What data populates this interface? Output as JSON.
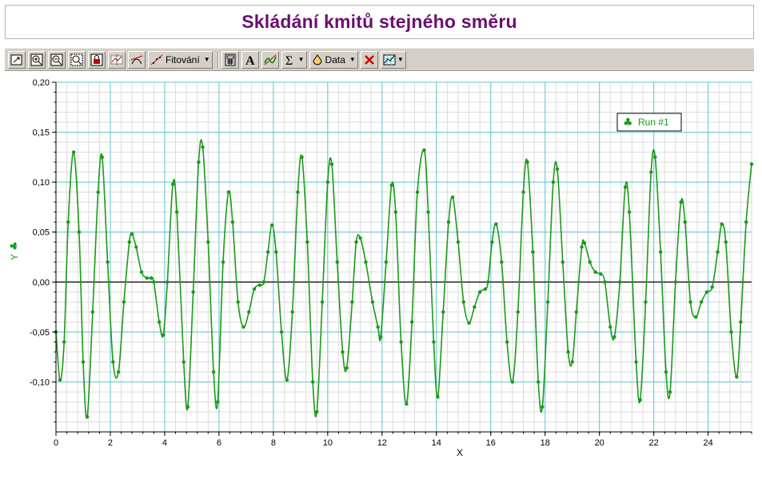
{
  "title": "Skládání kmitů stejného směru",
  "toolbar": {
    "fit_label": "Fitování",
    "data_label": "Data",
    "buttons": [
      "autoscale-icon",
      "zoom-in-icon",
      "zoom-out-icon",
      "zoom-box-icon",
      "lock-icon",
      "examine-icon",
      "tangent-icon",
      "fit-icon",
      "calculator-icon",
      "text-annotation-icon",
      "curve-fit-icon",
      "sigma-icon",
      "data-icon",
      "delete-icon",
      "graph-options-icon"
    ]
  },
  "colors": {
    "series": "#1a9a1a",
    "title": "#6a0f72",
    "grid_major": "#5fc8d2",
    "grid_minor": "#dcdcdc",
    "toolbar_bg": "#d4d0c8"
  },
  "chart_data": {
    "type": "line",
    "xlabel": "X",
    "ylabel": "Y",
    "xlim": [
      0,
      25.6
    ],
    "ylim": [
      -0.15,
      0.2
    ],
    "x_ticks": [
      "0",
      "2",
      "4",
      "6",
      "8",
      "10",
      "12",
      "14",
      "16",
      "18",
      "20",
      "22",
      "24"
    ],
    "y_ticks": [
      "-0,10",
      "-0,05",
      "0,00",
      "0,05",
      "0,10",
      "0,15",
      "0,20"
    ],
    "grid": true,
    "legend_position": "top-right",
    "series": [
      {
        "name": "Run #1",
        "points": [
          [
            0.0,
            -0.05
          ],
          [
            0.15,
            -0.098
          ],
          [
            0.3,
            -0.06
          ],
          [
            0.45,
            0.06
          ],
          [
            0.65,
            0.13
          ],
          [
            0.85,
            0.05
          ],
          [
            1.0,
            -0.08
          ],
          [
            1.15,
            -0.135
          ],
          [
            1.35,
            -0.03
          ],
          [
            1.55,
            0.09
          ],
          [
            1.7,
            0.125
          ],
          [
            1.9,
            0.02
          ],
          [
            2.1,
            -0.08
          ],
          [
            2.3,
            -0.09
          ],
          [
            2.5,
            -0.02
          ],
          [
            2.7,
            0.04
          ],
          [
            2.8,
            0.048
          ],
          [
            2.95,
            0.035
          ],
          [
            3.15,
            0.01
          ],
          [
            3.35,
            0.004
          ],
          [
            3.5,
            0.004
          ],
          [
            3.6,
            0.0
          ],
          [
            3.8,
            -0.04
          ],
          [
            3.95,
            -0.053
          ],
          [
            4.1,
            0.0
          ],
          [
            4.3,
            0.098
          ],
          [
            4.45,
            0.07
          ],
          [
            4.7,
            -0.08
          ],
          [
            4.85,
            -0.125
          ],
          [
            5.05,
            -0.01
          ],
          [
            5.25,
            0.12
          ],
          [
            5.4,
            0.135
          ],
          [
            5.6,
            0.04
          ],
          [
            5.8,
            -0.09
          ],
          [
            5.95,
            -0.12
          ],
          [
            6.15,
            0.02
          ],
          [
            6.35,
            0.09
          ],
          [
            6.5,
            0.06
          ],
          [
            6.7,
            -0.02
          ],
          [
            6.9,
            -0.045
          ],
          [
            7.1,
            -0.03
          ],
          [
            7.3,
            -0.007
          ],
          [
            7.5,
            -0.003
          ],
          [
            7.65,
            0.0
          ],
          [
            7.8,
            0.03
          ],
          [
            7.95,
            0.057
          ],
          [
            8.1,
            0.03
          ],
          [
            8.3,
            -0.05
          ],
          [
            8.5,
            -0.098
          ],
          [
            8.7,
            -0.03
          ],
          [
            8.9,
            0.09
          ],
          [
            9.05,
            0.125
          ],
          [
            9.25,
            0.04
          ],
          [
            9.45,
            -0.1
          ],
          [
            9.6,
            -0.13
          ],
          [
            9.8,
            -0.02
          ],
          [
            10.0,
            0.1
          ],
          [
            10.15,
            0.118
          ],
          [
            10.35,
            0.02
          ],
          [
            10.55,
            -0.07
          ],
          [
            10.7,
            -0.086
          ],
          [
            10.9,
            -0.02
          ],
          [
            11.05,
            0.04
          ],
          [
            11.2,
            0.044
          ],
          [
            11.4,
            0.02
          ],
          [
            11.65,
            -0.02
          ],
          [
            11.85,
            -0.045
          ],
          [
            11.95,
            -0.055
          ],
          [
            12.15,
            0.02
          ],
          [
            12.35,
            0.097
          ],
          [
            12.5,
            0.07
          ],
          [
            12.7,
            -0.06
          ],
          [
            12.9,
            -0.122
          ],
          [
            13.1,
            -0.04
          ],
          [
            13.3,
            0.09
          ],
          [
            13.55,
            0.132
          ],
          [
            13.7,
            0.07
          ],
          [
            13.9,
            -0.06
          ],
          [
            14.05,
            -0.115
          ],
          [
            14.25,
            -0.03
          ],
          [
            14.45,
            0.06
          ],
          [
            14.6,
            0.085
          ],
          [
            14.8,
            0.04
          ],
          [
            15.0,
            -0.02
          ],
          [
            15.2,
            -0.041
          ],
          [
            15.4,
            -0.025
          ],
          [
            15.6,
            -0.01
          ],
          [
            15.8,
            -0.007
          ],
          [
            15.9,
            0.0
          ],
          [
            16.05,
            0.04
          ],
          [
            16.2,
            0.058
          ],
          [
            16.4,
            0.02
          ],
          [
            16.6,
            -0.06
          ],
          [
            16.8,
            -0.1
          ],
          [
            17.0,
            -0.03
          ],
          [
            17.2,
            0.09
          ],
          [
            17.35,
            0.12
          ],
          [
            17.55,
            0.03
          ],
          [
            17.75,
            -0.1
          ],
          [
            17.9,
            -0.125
          ],
          [
            18.1,
            -0.02
          ],
          [
            18.3,
            0.1
          ],
          [
            18.45,
            0.113
          ],
          [
            18.65,
            0.02
          ],
          [
            18.85,
            -0.07
          ],
          [
            19.0,
            -0.08
          ],
          [
            19.15,
            -0.03
          ],
          [
            19.35,
            0.035
          ],
          [
            19.45,
            0.039
          ],
          [
            19.65,
            0.02
          ],
          [
            19.85,
            0.01
          ],
          [
            20.05,
            0.008
          ],
          [
            20.2,
            0.0
          ],
          [
            20.4,
            -0.045
          ],
          [
            20.55,
            -0.055
          ],
          [
            20.75,
            0.0
          ],
          [
            20.95,
            0.095
          ],
          [
            21.1,
            0.07
          ],
          [
            21.35,
            -0.08
          ],
          [
            21.5,
            -0.118
          ],
          [
            21.7,
            -0.02
          ],
          [
            21.9,
            0.11
          ],
          [
            22.05,
            0.125
          ],
          [
            22.25,
            0.03
          ],
          [
            22.45,
            -0.09
          ],
          [
            22.6,
            -0.11
          ],
          [
            22.8,
            0.0
          ],
          [
            23.0,
            0.08
          ],
          [
            23.15,
            0.06
          ],
          [
            23.35,
            -0.02
          ],
          [
            23.55,
            -0.035
          ],
          [
            23.75,
            -0.02
          ],
          [
            23.95,
            -0.01
          ],
          [
            24.15,
            -0.005
          ],
          [
            24.35,
            0.03
          ],
          [
            24.5,
            0.058
          ],
          [
            24.65,
            0.04
          ],
          [
            24.85,
            -0.05
          ],
          [
            25.05,
            -0.095
          ],
          [
            25.2,
            -0.04
          ],
          [
            25.4,
            0.06
          ],
          [
            25.6,
            0.118
          ]
        ]
      }
    ]
  }
}
